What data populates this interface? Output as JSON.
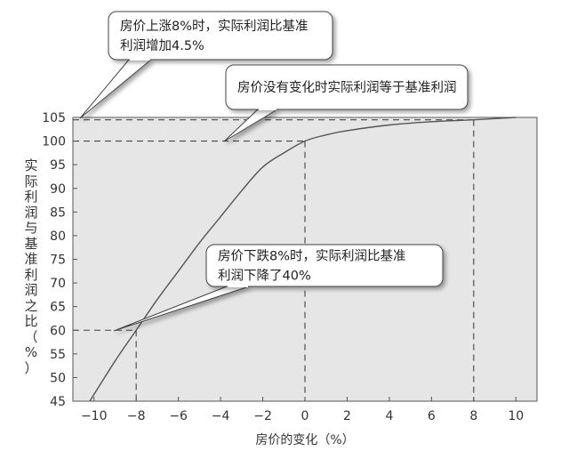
{
  "chart_data": {
    "type": "line",
    "xlabel": "房价的变化（%）",
    "ylabel": "实际利润与基准利润之比（%）",
    "xlim": [
      -11,
      11
    ],
    "ylim": [
      45,
      105
    ],
    "x_ticks": [
      -10,
      -8,
      -6,
      -4,
      -2,
      0,
      2,
      4,
      6,
      8,
      10
    ],
    "x_tick_labels": [
      "−10",
      "−8",
      "−6",
      "−4",
      "−2",
      "0",
      "2",
      "4",
      "6",
      "8",
      "10"
    ],
    "y_ticks": [
      45,
      50,
      55,
      60,
      65,
      70,
      75,
      80,
      85,
      90,
      95,
      100,
      105
    ],
    "grid": false,
    "series": [
      {
        "x": [
          -10.2,
          -9,
          -8,
          -7,
          -6,
          -5,
          -4,
          -3,
          -2,
          -1,
          0,
          1,
          2,
          4,
          6,
          8,
          10
        ],
        "y": [
          45,
          53.5,
          60,
          66.5,
          72.5,
          78.5,
          84,
          89.5,
          94.5,
          97.5,
          100,
          101.3,
          102.2,
          103.4,
          104.1,
          104.5,
          105
        ],
        "color": "#555555"
      }
    ],
    "reference_lines": [
      {
        "x": -8,
        "y": 60
      },
      {
        "x": 0,
        "y": 100
      },
      {
        "x": 8,
        "y": 104.5
      }
    ],
    "annotations": [
      {
        "lines": [
          "房价上涨8%时，实际利润比基准",
          "利润增加4.5%"
        ]
      },
      {
        "lines": [
          "房价没有变化时实际利润等于基准利润"
        ]
      },
      {
        "lines": [
          "房价下跌8%时，实际利润比基准",
          "利润下降了40%"
        ]
      }
    ]
  }
}
